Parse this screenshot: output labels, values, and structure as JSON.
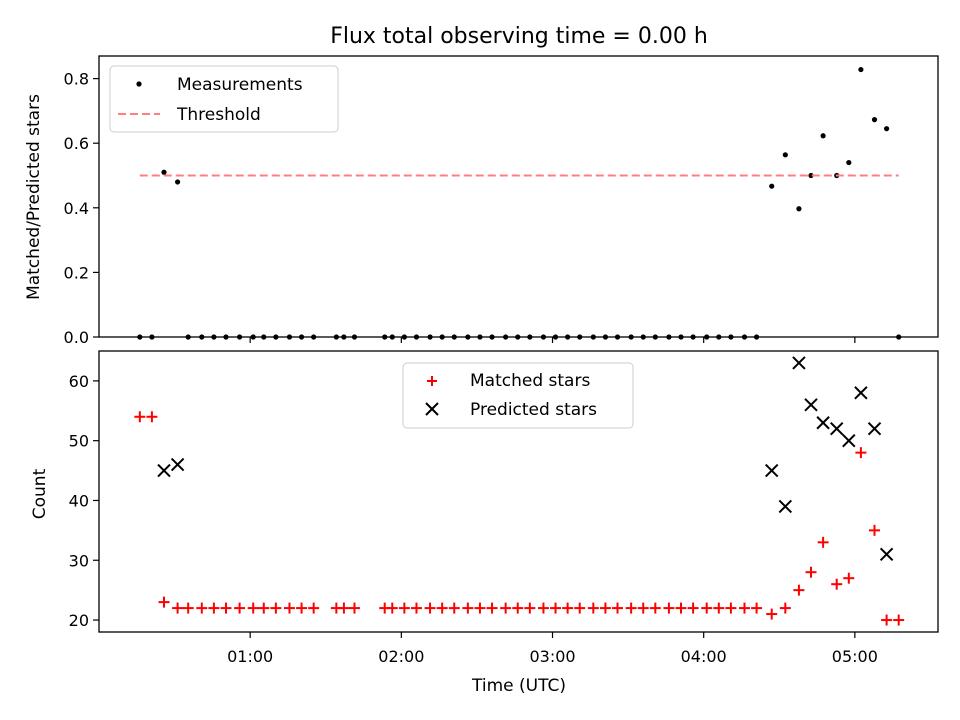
{
  "chart_data": [
    {
      "type": "scatter",
      "title": "Flux total observing time = 0.00 h",
      "xlabel": "",
      "ylabel": "Matched/Predicted stars",
      "x_ticks": [
        "01:00",
        "02:00",
        "03:00",
        "04:00",
        "05:00"
      ],
      "x_tick_hours": [
        1,
        2,
        3,
        4,
        5
      ],
      "xlim_hours": [
        0.0,
        5.55
      ],
      "ylim": [
        0,
        0.87
      ],
      "y_ticks": [
        "0.0",
        "0.2",
        "0.4",
        "0.6",
        "0.8"
      ],
      "legend_position": "upper-left",
      "series": [
        {
          "name": "Measurements",
          "marker": "dot",
          "color": "#000000",
          "x_hours": [
            0.27,
            0.35,
            0.43,
            0.52,
            0.59,
            0.68,
            0.76,
            0.84,
            0.93,
            1.02,
            1.09,
            1.17,
            1.26,
            1.34,
            1.42,
            1.57,
            1.62,
            1.69,
            1.89,
            1.94,
            2.02,
            2.1,
            2.19,
            2.27,
            2.35,
            2.44,
            2.52,
            2.6,
            2.69,
            2.77,
            2.85,
            2.94,
            3.02,
            3.1,
            3.18,
            3.27,
            3.35,
            3.43,
            3.52,
            3.6,
            3.68,
            3.77,
            3.85,
            3.93,
            4.02,
            4.1,
            4.18,
            4.27,
            4.35,
            4.45,
            4.54,
            4.63,
            4.71,
            4.79,
            4.88,
            4.96,
            5.04,
            5.13,
            5.21,
            5.29
          ],
          "y": [
            0.0,
            0.0,
            0.51,
            0.48,
            0.0,
            0.0,
            0.0,
            0.0,
            0.0,
            0.0,
            0.0,
            0.0,
            0.0,
            0.0,
            0.0,
            0.0,
            0.0,
            0.0,
            0.0,
            0.0,
            0.0,
            0.0,
            0.0,
            0.0,
            0.0,
            0.0,
            0.0,
            0.0,
            0.0,
            0.0,
            0.0,
            0.0,
            0.0,
            0.0,
            0.0,
            0.0,
            0.0,
            0.0,
            0.0,
            0.0,
            0.0,
            0.0,
            0.0,
            0.0,
            0.0,
            0.0,
            0.0,
            0.0,
            0.0,
            0.467,
            0.564,
            0.397,
            0.5,
            0.623,
            0.5,
            0.54,
            0.828,
            0.673,
            0.645,
            0.0
          ]
        },
        {
          "name": "Threshold",
          "marker": "dashed-line",
          "color": "#ff7f7f",
          "x_hours": [
            0.27,
            5.29
          ],
          "y": [
            0.5,
            0.5
          ]
        }
      ]
    },
    {
      "type": "scatter",
      "title": "",
      "xlabel": "Time (UTC)",
      "ylabel": "Count",
      "x_ticks": [
        "01:00",
        "02:00",
        "03:00",
        "04:00",
        "05:00"
      ],
      "x_tick_hours": [
        1,
        2,
        3,
        4,
        5
      ],
      "xlim_hours": [
        0.0,
        5.55
      ],
      "ylim": [
        18,
        65
      ],
      "y_ticks": [
        "20",
        "30",
        "40",
        "50",
        "60"
      ],
      "legend_position": "upper-center",
      "series": [
        {
          "name": "Matched stars",
          "marker": "plus",
          "color": "#ff0000",
          "x_hours": [
            0.27,
            0.35,
            0.43,
            0.52,
            0.59,
            0.68,
            0.76,
            0.84,
            0.93,
            1.02,
            1.09,
            1.17,
            1.26,
            1.34,
            1.42,
            1.57,
            1.62,
            1.69,
            1.89,
            1.94,
            2.02,
            2.1,
            2.19,
            2.27,
            2.35,
            2.44,
            2.52,
            2.6,
            2.69,
            2.77,
            2.85,
            2.94,
            3.02,
            3.1,
            3.18,
            3.27,
            3.35,
            3.43,
            3.52,
            3.6,
            3.68,
            3.77,
            3.85,
            3.93,
            4.02,
            4.1,
            4.18,
            4.27,
            4.35,
            4.45,
            4.54,
            4.63,
            4.71,
            4.79,
            4.88,
            4.96,
            5.04,
            5.13,
            5.21,
            5.29
          ],
          "y": [
            54,
            54,
            23,
            22,
            22,
            22,
            22,
            22,
            22,
            22,
            22,
            22,
            22,
            22,
            22,
            22,
            22,
            22,
            22,
            22,
            22,
            22,
            22,
            22,
            22,
            22,
            22,
            22,
            22,
            22,
            22,
            22,
            22,
            22,
            22,
            22,
            22,
            22,
            22,
            22,
            22,
            22,
            22,
            22,
            22,
            22,
            22,
            22,
            22,
            21,
            22,
            25,
            28,
            33,
            26,
            27,
            48,
            35,
            20,
            20
          ]
        },
        {
          "name": "Predicted stars",
          "marker": "x",
          "color": "#000000",
          "x_hours": [
            0.43,
            0.52,
            4.45,
            4.54,
            4.63,
            4.71,
            4.79,
            4.88,
            4.96,
            5.04,
            5.13,
            5.21
          ],
          "y": [
            45,
            46,
            45,
            39,
            63,
            56,
            53,
            52,
            50,
            58,
            52,
            31
          ]
        }
      ]
    }
  ]
}
